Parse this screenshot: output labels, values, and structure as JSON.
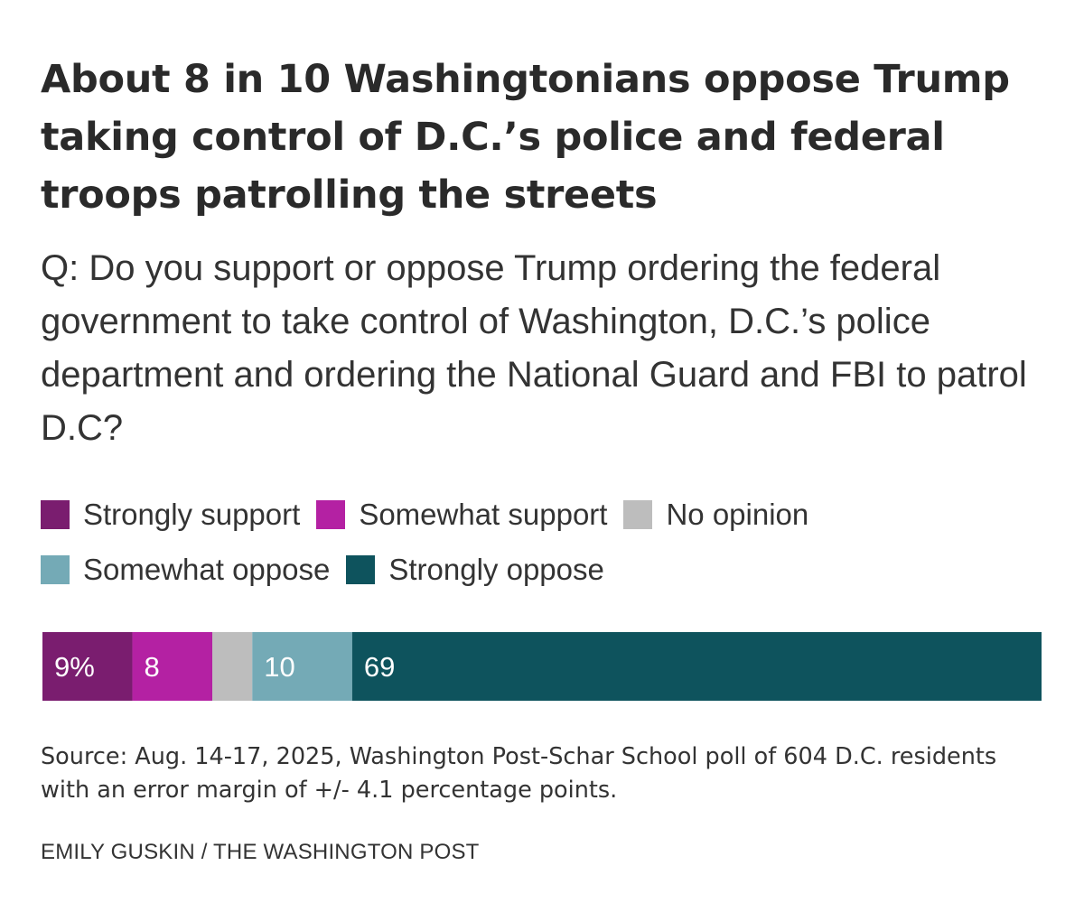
{
  "chart_data": {
    "type": "bar",
    "orientation": "horizontal-stacked",
    "title": "About 8 in 10 Washingtonians oppose Trump taking control of D.C.’s police and federal troops patrolling the streets",
    "subtitle": "Q: Do you support or oppose Trump ordering the federal government to take control of Washington, D.C.’s police department and ordering the National Guard and FBI to patrol D.C?",
    "legend_position": "top",
    "series": [
      {
        "name": "Strongly support",
        "value": 9,
        "label": "9%",
        "color": "#7a1d6f"
      },
      {
        "name": "Somewhat support",
        "value": 8,
        "label": "8",
        "color": "#b421a3"
      },
      {
        "name": "No opinion",
        "value": 4,
        "label": "",
        "color": "#bdbdbd"
      },
      {
        "name": "Somewhat oppose",
        "value": 10,
        "label": "10",
        "color": "#74aab6"
      },
      {
        "name": "Strongly oppose",
        "value": 69,
        "label": "69",
        "color": "#0e535d"
      }
    ],
    "xlim": [
      0,
      100
    ]
  },
  "legend_rows": [
    [
      0,
      1,
      2
    ],
    [
      3,
      4
    ]
  ],
  "source": "Source: Aug. 14-17, 2025, Washington Post-Schar School poll of 604 D.C. residents with an error margin of +/- 4.1 percentage points.",
  "credit": "EMILY GUSKIN / THE WASHINGTON POST"
}
